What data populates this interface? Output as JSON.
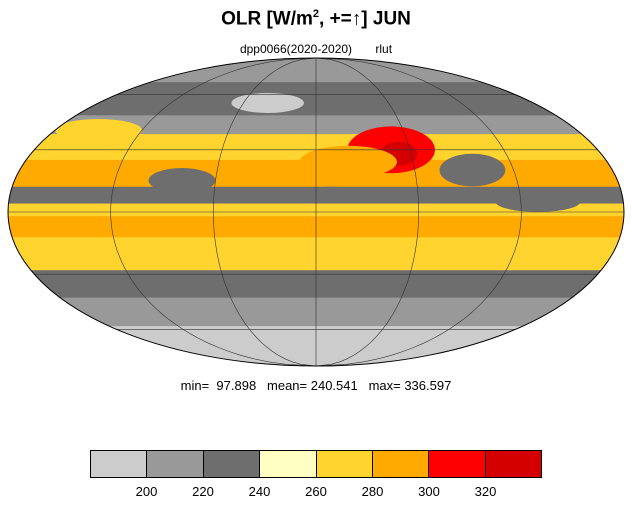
{
  "title": {
    "main": "OLR [W/m",
    "sup": "2",
    "rest": ", +=",
    "arrow": "↑",
    "month": "] JUN"
  },
  "subtitle": {
    "run": "dpp0066(2020-2020)",
    "var": "rlut"
  },
  "stats": {
    "text": "min=  97.898   mean= 240.541   max= 336.597"
  },
  "colorbar": {
    "ticks": [
      "200",
      "220",
      "240",
      "260",
      "280",
      "300",
      "320"
    ],
    "colors": [
      "#cccccc",
      "#999999",
      "#6e6e6e",
      "#ffffc4",
      "#ffd42e",
      "#ffaa00",
      "#ff0000",
      "#d40000"
    ]
  },
  "map": {
    "projection": "mollweide",
    "bands": [
      {
        "lat_from": 90,
        "lat_to": 68,
        "level": 1
      },
      {
        "lat_from": 68,
        "lat_to": 48,
        "level": 2
      },
      {
        "lat_from": 48,
        "lat_to": 38,
        "level": 1
      },
      {
        "lat_from": 38,
        "lat_to": 25,
        "level": 4
      },
      {
        "lat_from": 25,
        "lat_to": 12,
        "level": 5
      },
      {
        "lat_from": 12,
        "lat_to": 4,
        "level": 2
      },
      {
        "lat_from": 4,
        "lat_to": -2,
        "level": 4
      },
      {
        "lat_from": -2,
        "lat_to": -12,
        "level": 5
      },
      {
        "lat_from": -12,
        "lat_to": -28,
        "level": 4
      },
      {
        "lat_from": -28,
        "lat_to": -42,
        "level": 2
      },
      {
        "lat_from": -42,
        "lat_to": -58,
        "level": 1
      },
      {
        "lat_from": -58,
        "lat_to": -90,
        "level": 0
      }
    ],
    "blobs": [
      {
        "lon": 48,
        "lat": 30,
        "rx": 28,
        "ry": 12,
        "level": 6
      },
      {
        "lon": 52,
        "lat": 28,
        "rx": 12,
        "ry": 6,
        "level": 7
      },
      {
        "lon": 20,
        "lat": 24,
        "rx": 30,
        "ry": 8,
        "level": 5
      },
      {
        "lon": 95,
        "lat": 20,
        "rx": 20,
        "ry": 8,
        "level": 2
      },
      {
        "lon": 10,
        "lat": 8,
        "rx": 25,
        "ry": 4,
        "level": 2
      },
      {
        "lon": -80,
        "lat": 15,
        "rx": 20,
        "ry": 6,
        "level": 2
      },
      {
        "lon": -150,
        "lat": 40,
        "rx": 30,
        "ry": 6,
        "level": 4
      },
      {
        "lon": 130,
        "lat": 5,
        "rx": 25,
        "ry": 5,
        "level": 2
      },
      {
        "lon": -40,
        "lat": 55,
        "rx": 30,
        "ry": 6,
        "level": 0
      }
    ]
  }
}
